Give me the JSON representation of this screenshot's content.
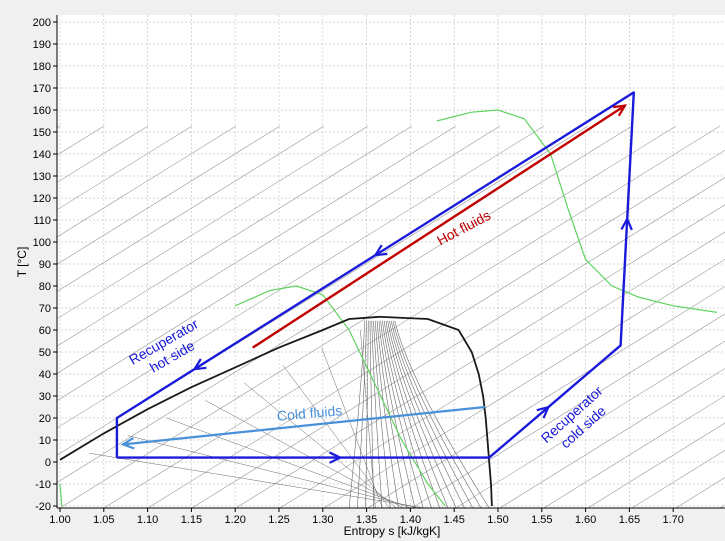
{
  "chart_data": {
    "type": "line",
    "xlabel": "Entropy s [kJ/kgK]",
    "ylabel": "T [°C]",
    "xlim": [
      1.0,
      1.75
    ],
    "ylim": [
      -20,
      200
    ],
    "x_ticks": [
      "1.00",
      "1.05",
      "1.10",
      "1.15",
      "1.20",
      "1.25",
      "1.30",
      "1.35",
      "1.40",
      "1.45",
      "1.50",
      "1.55",
      "1.60",
      "1.65",
      "1.70"
    ],
    "y_ticks": [
      "-20",
      "-10",
      "0",
      "10",
      "20",
      "30",
      "40",
      "50",
      "60",
      "70",
      "80",
      "90",
      "100",
      "110",
      "120",
      "130",
      "140",
      "150",
      "160",
      "170",
      "180",
      "190",
      "200"
    ],
    "grid": true,
    "colors": {
      "cycle": "#1a1adb",
      "hot": "#c00000",
      "cold": "#4a90d9",
      "dome": "#1a1a1a",
      "green": "#5fd35f",
      "isobar": "#9a9a9a",
      "background": "#ffffff"
    },
    "saturation_dome": {
      "liquid_line": [
        [
          1.0,
          1
        ],
        [
          1.05,
          13
        ],
        [
          1.1,
          24
        ],
        [
          1.15,
          34
        ],
        [
          1.2,
          43
        ],
        [
          1.25,
          52
        ],
        [
          1.3,
          60
        ],
        [
          1.33,
          65
        ],
        [
          1.365,
          66
        ]
      ],
      "vapor_line": [
        [
          1.365,
          66
        ],
        [
          1.42,
          65
        ],
        [
          1.455,
          60
        ],
        [
          1.47,
          50
        ],
        [
          1.478,
          40
        ],
        [
          1.483,
          30
        ],
        [
          1.486,
          20
        ],
        [
          1.488,
          10
        ],
        [
          1.49,
          0
        ],
        [
          1.492,
          -10
        ],
        [
          1.493,
          -20
        ]
      ]
    },
    "cycle": [
      [
        1.065,
        2
      ],
      [
        1.49,
        2
      ],
      [
        1.64,
        53
      ],
      [
        1.655,
        168
      ],
      [
        1.065,
        20
      ],
      [
        1.065,
        2
      ]
    ],
    "green_curves": [
      [
        [
          1.2,
          71
        ],
        [
          1.24,
          78
        ],
        [
          1.27,
          80
        ],
        [
          1.3,
          76
        ],
        [
          1.33,
          60
        ],
        [
          1.36,
          35
        ],
        [
          1.39,
          10
        ],
        [
          1.42,
          -10
        ],
        [
          1.44,
          -20
        ]
      ],
      [
        [
          1.43,
          155
        ],
        [
          1.47,
          159
        ],
        [
          1.5,
          160
        ],
        [
          1.53,
          156
        ],
        [
          1.56,
          140
        ],
        [
          1.58,
          115
        ],
        [
          1.6,
          92
        ],
        [
          1.63,
          80
        ],
        [
          1.66,
          75
        ],
        [
          1.7,
          71
        ],
        [
          1.75,
          68
        ]
      ],
      [
        [
          1.0,
          -10
        ],
        [
          1.002,
          -20
        ]
      ]
    ],
    "annotations": {
      "hot_fluids": "Hot fluids",
      "cold_fluids": "Cold fluids",
      "recuperator_hot_side_1": "Recuperator",
      "recuperator_hot_side_2": "hot side",
      "recuperator_cold_side_1": "Recuperator",
      "recuperator_cold_side_2": "cold side"
    },
    "hot_fluids_arrow": [
      [
        1.22,
        52
      ],
      [
        1.645,
        162
      ]
    ],
    "cold_fluids_arrow": [
      [
        1.485,
        25
      ],
      [
        1.072,
        8
      ]
    ]
  }
}
